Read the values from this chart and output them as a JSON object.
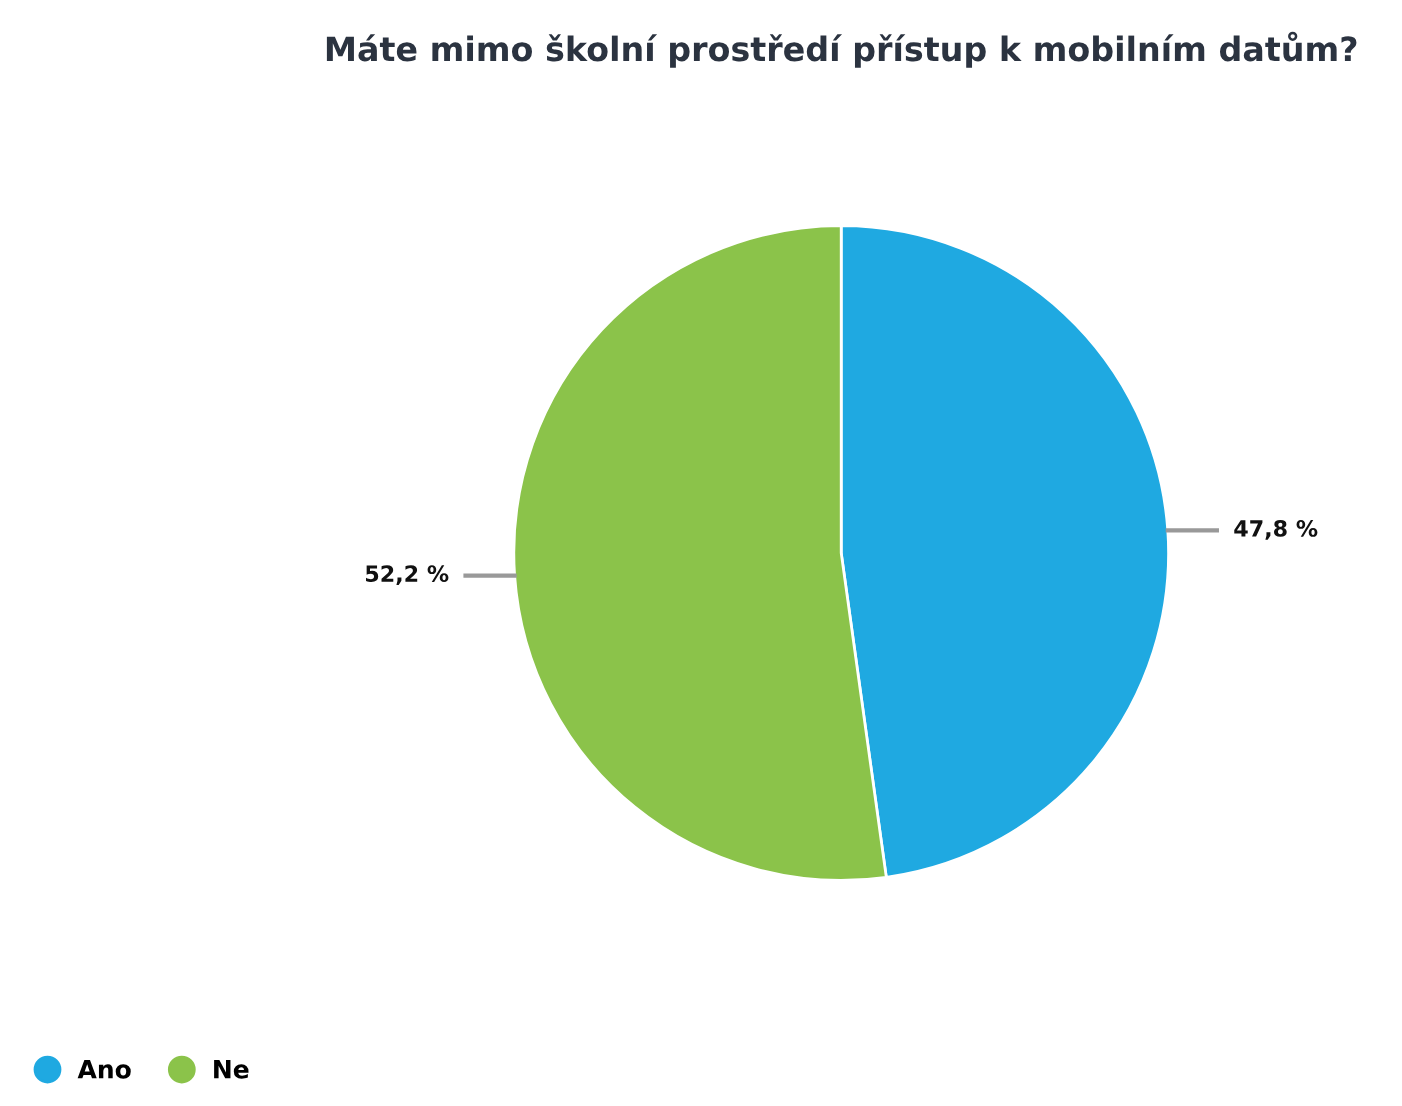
{
  "chart_data": {
    "type": "pie",
    "title": "Máte mimo školní prostředí přístup k mobilním datům?",
    "categories": [
      "Ano",
      "Ne"
    ],
    "values": [
      47.8,
      52.2
    ],
    "colors": [
      "#1fa9e1",
      "#8bc34a"
    ],
    "value_labels": [
      "47,8 %",
      "52,2 %"
    ],
    "legend": "bottom left"
  }
}
